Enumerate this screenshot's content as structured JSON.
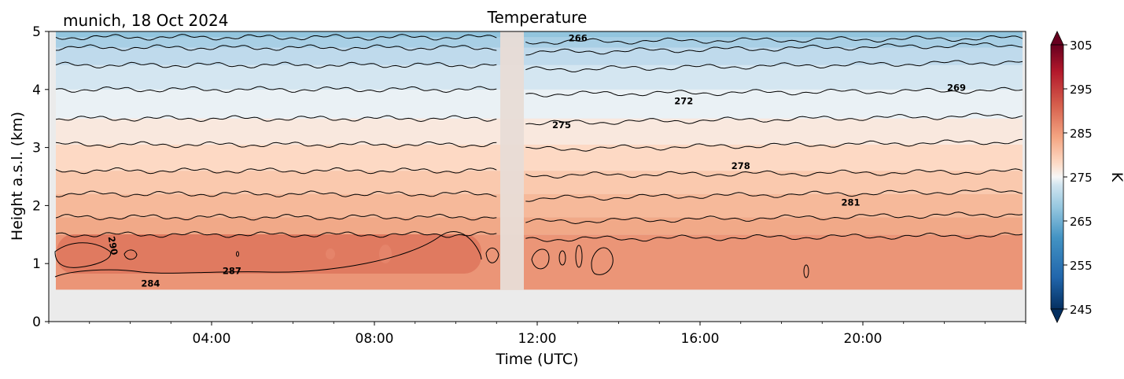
{
  "location_date": "munich, 18 Oct 2024",
  "chart_data": {
    "type": "heatmap",
    "title": "Temperature",
    "xlabel": "Time (UTC)",
    "ylabel": "Height a.s.l. (km)",
    "x_ticks": [
      "04:00",
      "08:00",
      "12:00",
      "16:00",
      "20:00"
    ],
    "x_tick_hours": [
      4,
      8,
      12,
      16,
      20
    ],
    "xlim_hours": [
      0,
      24
    ],
    "y_ticks": [
      "0",
      "1",
      "2",
      "3",
      "4",
      "5"
    ],
    "ylim": [
      0,
      5
    ],
    "data_height_range_km": [
      0.55,
      5.0
    ],
    "missing_data_hours": [
      11.0,
      11.6
    ],
    "contour_levels_K": [
      263,
      266,
      269,
      272,
      275,
      278,
      281,
      284,
      287,
      290
    ],
    "contour_heights_km": [
      {
        "level": 263,
        "height": 4.9
      },
      {
        "level": 266,
        "height": 4.72
      },
      {
        "level": 269,
        "height": 4.42
      },
      {
        "level": 272,
        "height": 4.0
      },
      {
        "level": 275,
        "height": 3.5
      },
      {
        "level": 278,
        "height": 3.05
      },
      {
        "level": 281,
        "height": 2.6
      },
      {
        "level": 284,
        "height": 2.2
      },
      {
        "level": 287,
        "height": 1.8
      },
      {
        "level": 290,
        "height": 1.5
      }
    ],
    "contour_labels": [
      {
        "text": "266",
        "x_hours": 13.0,
        "y_km": 4.83
      },
      {
        "text": "269",
        "x_hours": 22.3,
        "y_km": 3.98
      },
      {
        "text": "272",
        "x_hours": 15.6,
        "y_km": 3.75
      },
      {
        "text": "275",
        "x_hours": 12.6,
        "y_km": 3.33
      },
      {
        "text": "278",
        "x_hours": 17.0,
        "y_km": 2.63
      },
      {
        "text": "281",
        "x_hours": 19.7,
        "y_km": 2.0
      },
      {
        "text": "284",
        "x_hours": 2.5,
        "y_km": 0.6
      },
      {
        "text": "287",
        "x_hours": 4.5,
        "y_km": 0.82
      },
      {
        "text": "290",
        "x_hours": 1.5,
        "y_km": 1.3
      }
    ],
    "colorbar": {
      "label": "K",
      "min": 245,
      "max": 305,
      "ticks": [
        "305",
        "295",
        "285",
        "275",
        "265",
        "255",
        "245"
      ],
      "colormap": "RdBu_r"
    }
  }
}
